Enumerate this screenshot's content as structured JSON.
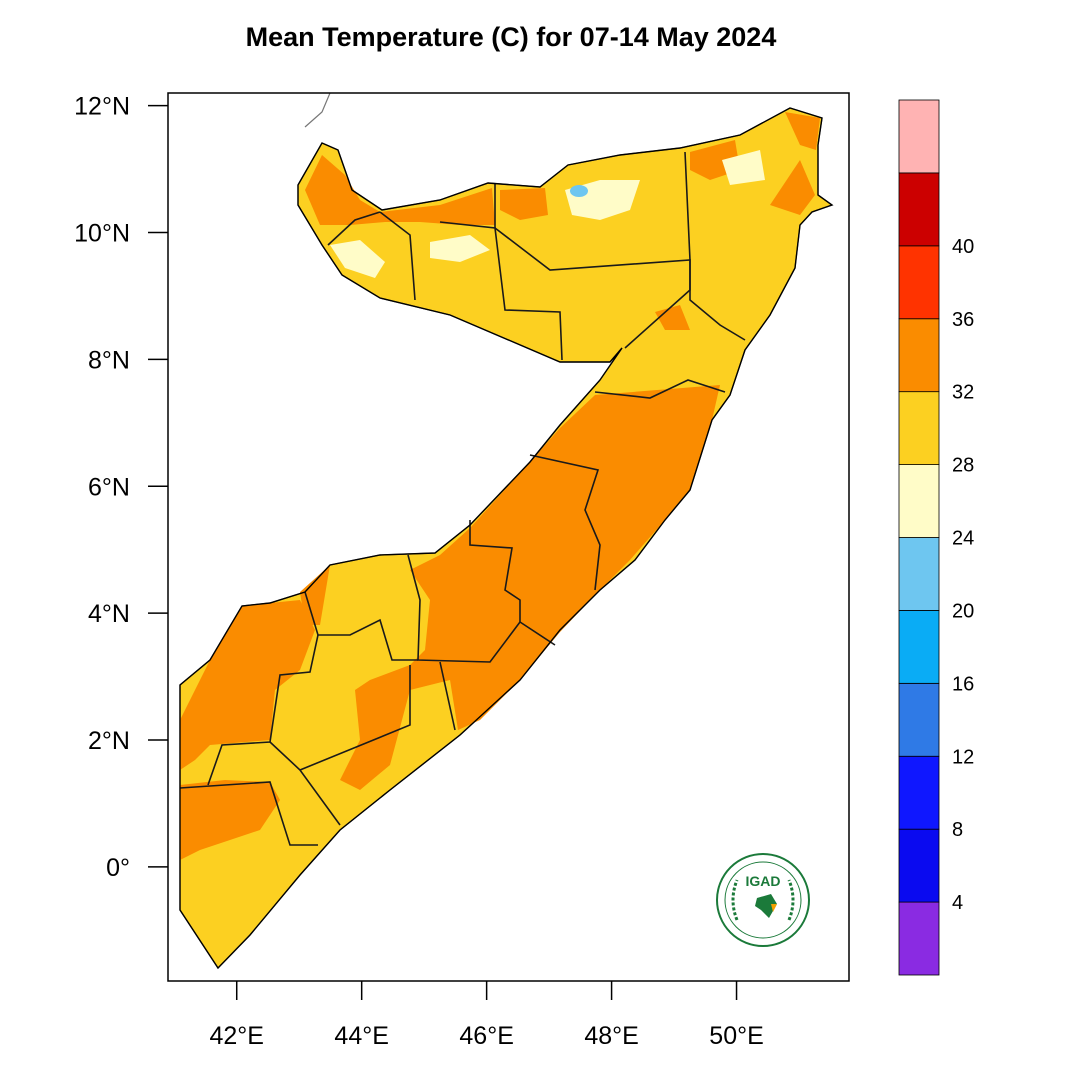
{
  "title": "Mean Temperature (C) for 07-14 May 2024",
  "map": {
    "lon_range": [
      40.9,
      51.8
    ],
    "lat_range": [
      -1.8,
      12.2
    ],
    "lat_ticks": [
      {
        "value": 12,
        "label": "12°N"
      },
      {
        "value": 10,
        "label": "10°N"
      },
      {
        "value": 8,
        "label": "8°N"
      },
      {
        "value": 6,
        "label": "6°N"
      },
      {
        "value": 4,
        "label": "4°N"
      },
      {
        "value": 2,
        "label": "2°N"
      },
      {
        "value": 0,
        "label": "0°"
      }
    ],
    "lon_ticks": [
      {
        "value": 42,
        "label": "42°E"
      },
      {
        "value": 44,
        "label": "44°E"
      },
      {
        "value": 46,
        "label": "46°E"
      },
      {
        "value": 48,
        "label": "48°E"
      },
      {
        "value": 50,
        "label": "50°E"
      }
    ]
  },
  "colorbar": {
    "colors": [
      "#8a2be2",
      "#0a0af0",
      "#0f17ff",
      "#2f7ae6",
      "#0aacf5",
      "#6ec6f0",
      "#fffcc8",
      "#fcd021",
      "#fa8c00",
      "#ff3300",
      "#cc0000",
      "#ffb3b3"
    ],
    "labels": [
      "4",
      "8",
      "12",
      "16",
      "20",
      "24",
      "28",
      "32",
      "36",
      "40"
    ]
  },
  "logo": {
    "text": "IGAD"
  }
}
